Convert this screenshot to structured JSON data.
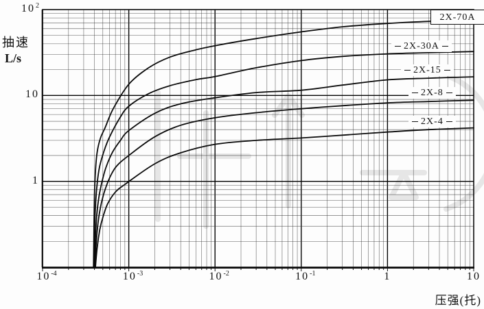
{
  "axes": {
    "y_title_line1": "抽速",
    "y_title_line2": "L/s",
    "x_title": "压强(托)",
    "y_ticks": [
      {
        "base": "10",
        "exp": "2",
        "value": 100
      },
      {
        "base": "10",
        "exp": "",
        "value": 10
      },
      {
        "base": "1",
        "exp": "",
        "value": 1
      }
    ],
    "x_ticks": [
      {
        "base": "10",
        "exp": "-4",
        "value": 0.0001
      },
      {
        "base": "10",
        "exp": "-3",
        "value": 0.001
      },
      {
        "base": "10",
        "exp": "-2",
        "value": 0.01
      },
      {
        "base": "10",
        "exp": "-1",
        "value": 0.1
      },
      {
        "base": "1",
        "exp": "",
        "value": 1
      },
      {
        "base": "10",
        "exp": "",
        "value": 10
      }
    ]
  },
  "curve_labels": [
    {
      "label": "2X-70A",
      "boxed": true
    },
    {
      "label": "2X-30A",
      "boxed": false
    },
    {
      "label": "2X-15",
      "boxed": false
    },
    {
      "label": "2X-8",
      "boxed": false
    },
    {
      "label": "2X-4",
      "boxed": false
    }
  ],
  "colors": {
    "line": "#0a0a0a",
    "grid_minor": "#2f2f2f",
    "grid_major": "#000000",
    "background": "#fdfdfd"
  },
  "chart_data": {
    "type": "line",
    "x_scale": "log",
    "y_scale": "log",
    "xlabel": "压强(托)",
    "ylabel": "抽速 L/s",
    "xlim": [
      0.0001,
      10
    ],
    "ylim": [
      0.1,
      100
    ],
    "grid": "log-log graph paper, minor divisions 2-9 each decade",
    "legend_position": "inline labels at right of curves",
    "series": [
      {
        "name": "2X-70A",
        "points": [
          [
            0.00039,
            0.1
          ],
          [
            0.000395,
            0.3
          ],
          [
            0.0004,
            0.7
          ],
          [
            0.00041,
            1.3
          ],
          [
            0.00043,
            2.2
          ],
          [
            0.00047,
            3.2
          ],
          [
            0.00053,
            4.2
          ],
          [
            0.00066,
            7.0
          ],
          [
            0.001,
            13.5
          ],
          [
            0.0017,
            21
          ],
          [
            0.003,
            28
          ],
          [
            0.006,
            34
          ],
          [
            0.01,
            38
          ],
          [
            0.03,
            46
          ],
          [
            0.1,
            55
          ],
          [
            0.3,
            63
          ],
          [
            1,
            69
          ],
          [
            3,
            73
          ],
          [
            10,
            75
          ]
        ]
      },
      {
        "name": "2X-30A",
        "points": [
          [
            0.000395,
            0.1
          ],
          [
            0.0004,
            0.25
          ],
          [
            0.00041,
            0.5
          ],
          [
            0.00043,
            0.95
          ],
          [
            0.00046,
            1.5
          ],
          [
            0.00052,
            2.3
          ],
          [
            0.0006,
            3.3
          ],
          [
            0.00079,
            5.5
          ],
          [
            0.001,
            7.5
          ],
          [
            0.0017,
            10.5
          ],
          [
            0.003,
            13
          ],
          [
            0.006,
            15.3
          ],
          [
            0.01,
            16.6
          ],
          [
            0.03,
            21
          ],
          [
            0.1,
            25.5
          ],
          [
            0.3,
            28.5
          ],
          [
            1,
            30.5
          ],
          [
            3,
            31.5
          ],
          [
            10,
            32.5
          ]
        ]
      },
      {
        "name": "2X-15",
        "points": [
          [
            0.0004,
            0.1
          ],
          [
            0.00041,
            0.22
          ],
          [
            0.000425,
            0.4
          ],
          [
            0.00045,
            0.65
          ],
          [
            0.00049,
            1.0
          ],
          [
            0.00055,
            1.5
          ],
          [
            0.00065,
            2.2
          ],
          [
            0.0008,
            3.0
          ],
          [
            0.001,
            3.9
          ],
          [
            0.002,
            6.2
          ],
          [
            0.004,
            8.0
          ],
          [
            0.01,
            9.4
          ],
          [
            0.03,
            10.8
          ],
          [
            0.1,
            11.5
          ],
          [
            0.3,
            13.2
          ],
          [
            1,
            15.2
          ],
          [
            3,
            15.9
          ],
          [
            10,
            16.5
          ]
        ]
      },
      {
        "name": "2X-8",
        "points": [
          [
            0.000405,
            0.1
          ],
          [
            0.00042,
            0.2
          ],
          [
            0.00044,
            0.33
          ],
          [
            0.00047,
            0.5
          ],
          [
            0.00052,
            0.75
          ],
          [
            0.0006,
            1.1
          ],
          [
            0.00072,
            1.5
          ],
          [
            0.001,
            2.0
          ],
          [
            0.002,
            3.3
          ],
          [
            0.004,
            4.5
          ],
          [
            0.01,
            5.5
          ],
          [
            0.03,
            6.3
          ],
          [
            0.1,
            7.0
          ],
          [
            0.3,
            7.6
          ],
          [
            1,
            8.2
          ],
          [
            3,
            8.5
          ],
          [
            10,
            8.8
          ]
        ]
      },
      {
        "name": "2X-4",
        "points": [
          [
            0.00041,
            0.1
          ],
          [
            0.00043,
            0.17
          ],
          [
            0.00046,
            0.27
          ],
          [
            0.0005,
            0.38
          ],
          [
            0.00057,
            0.55
          ],
          [
            0.0007,
            0.75
          ],
          [
            0.0009,
            0.92
          ],
          [
            0.002,
            1.6
          ],
          [
            0.004,
            2.15
          ],
          [
            0.01,
            2.7
          ],
          [
            0.03,
            3.0
          ],
          [
            0.1,
            3.2
          ],
          [
            0.3,
            3.45
          ],
          [
            1,
            3.75
          ],
          [
            3,
            4.0
          ],
          [
            10,
            4.2
          ]
        ]
      }
    ]
  }
}
